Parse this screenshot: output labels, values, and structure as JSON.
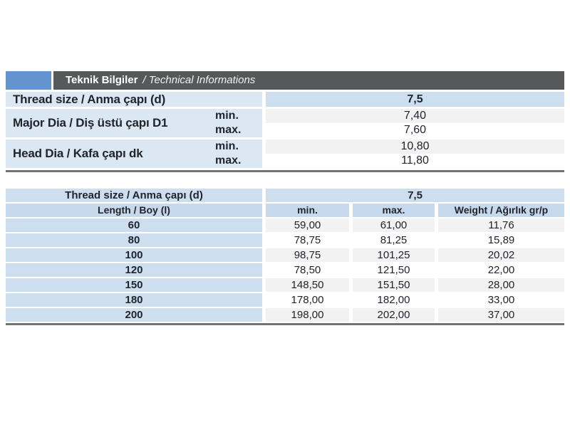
{
  "colors": {
    "accent_blue": "#6494cd",
    "bar_gray": "#57585a",
    "label_blue_light": "#dbe8f4",
    "cell_blue": "#cddeef",
    "header_blue": "#c6d9ed",
    "row_gray": "#f2f2f2",
    "rule_gray": "#717275",
    "text": "#20242c"
  },
  "title_bar": {
    "bold": "Teknik Bilgiler",
    "italic": "/ Technical Informations"
  },
  "spec_table": {
    "thread": {
      "label": "Thread size / Anma çapı (d)",
      "value": "7,5"
    },
    "major": {
      "label": "Major Dia / Diş üstü çapı D1",
      "min_label": "min.",
      "max_label": "max.",
      "min_value": "7,40",
      "max_value": "7,60"
    },
    "head": {
      "label": "Head Dia / Kafa çapı dk",
      "min_label": "min.",
      "max_label": "max.",
      "min_value": "10,80",
      "max_value": "11,80"
    }
  },
  "length_table": {
    "thread_label": "Thread size / Anma çapı (d)",
    "thread_value": "7,5",
    "columns": [
      "Length / Boy (l)",
      "min.",
      "max.",
      "Weight / Ağırlık gr/p"
    ],
    "rows": [
      [
        "60",
        "59,00",
        "61,00",
        "11,76"
      ],
      [
        "80",
        "78,75",
        "81,25",
        "15,89"
      ],
      [
        "100",
        "98,75",
        "101,25",
        "20,02"
      ],
      [
        "120",
        "78,50",
        "121,50",
        "22,00"
      ],
      [
        "150",
        "148,50",
        "151,50",
        "28,00"
      ],
      [
        "180",
        "178,00",
        "182,00",
        "33,00"
      ],
      [
        "200",
        "198,00",
        "202,00",
        "37,00"
      ]
    ]
  }
}
